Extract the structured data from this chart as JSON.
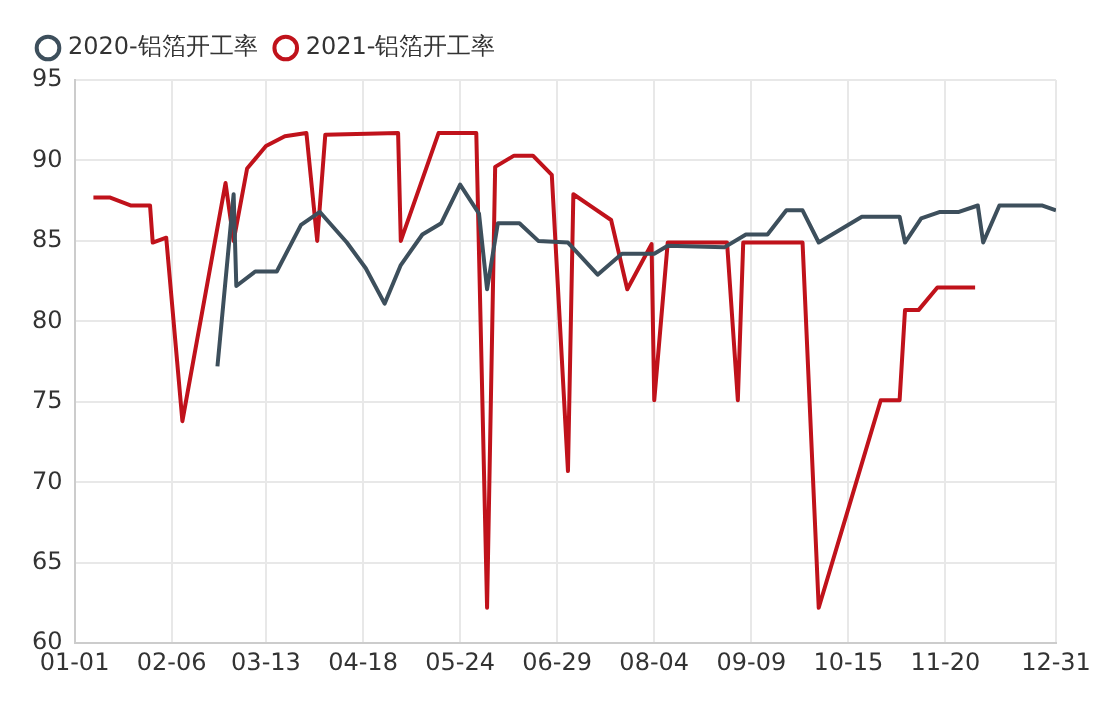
{
  "chart_data": {
    "type": "line",
    "legend": "top left",
    "grid": true,
    "marker": "none",
    "line_style": "solid",
    "xlim": [
      "--01-01",
      "--12-31"
    ],
    "xticks": [
      {
        "value": "--01-01",
        "label": "01-01"
      },
      {
        "value": "--02-06",
        "label": "02-06"
      },
      {
        "value": "--03-13",
        "label": "03-13"
      },
      {
        "value": "--04-18",
        "label": "04-18"
      },
      {
        "value": "--05-24",
        "label": "05-24"
      },
      {
        "value": "--06-29",
        "label": "06-29"
      },
      {
        "value": "--08-04",
        "label": "08-04"
      },
      {
        "value": "--09-09",
        "label": "09-09"
      },
      {
        "value": "--10-15",
        "label": "10-15"
      },
      {
        "value": "--11-20",
        "label": "11-20"
      },
      {
        "value": "--12-31",
        "label": "12-31"
      }
    ],
    "ylim": [
      60,
      95
    ],
    "yticks": [
      60,
      65,
      70,
      75,
      80,
      85,
      90,
      95
    ],
    "series": [
      {
        "name": "2020-铝箔开工率",
        "color": "#3d4f5c",
        "x": [
          "--02-23",
          "--03-01",
          "--03-02",
          "--03-09",
          "--03-17",
          "--03-26",
          "--04-02",
          "--04-12",
          "--04-19",
          "--04-26",
          "--05-02",
          "--05-10",
          "--05-17",
          "--05-24",
          "--05-31",
          "--06-03",
          "--06-07",
          "--06-15",
          "--06-22",
          "--07-03",
          "--07-14",
          "--07-23",
          "--08-04",
          "--08-09",
          "--08-30",
          "--09-07",
          "--09-15",
          "--09-22",
          "--09-28",
          "--10-04",
          "--10-20",
          "--11-03",
          "--11-05",
          "--11-11",
          "--11-18",
          "--11-25",
          "--12-02",
          "--12-04",
          "--12-10",
          "--12-26",
          "--12-31"
        ],
        "values": [
          77.2,
          87.9,
          82.2,
          83.1,
          83.1,
          86.0,
          86.8,
          84.9,
          83.3,
          81.1,
          83.5,
          85.4,
          86.1,
          88.5,
          86.7,
          82.0,
          86.1,
          86.1,
          85.0,
          84.9,
          82.9,
          84.2,
          84.2,
          84.7,
          84.6,
          85.4,
          85.4,
          86.9,
          86.9,
          84.9,
          86.5,
          86.5,
          84.9,
          86.4,
          86.8,
          86.8,
          87.2,
          84.9,
          87.2,
          87.2,
          86.9
        ]
      },
      {
        "name": "2021-铝箔开工率",
        "color": "#c0121b",
        "x": [
          "--01-08",
          "--01-14",
          "--01-22",
          "--01-29",
          "--01-30",
          "--02-04",
          "--02-10",
          "--02-26",
          "--03-01",
          "--03-06",
          "--03-13",
          "--03-20",
          "--03-28",
          "--04-01",
          "--04-04",
          "--05-01",
          "--05-02",
          "--05-16",
          "--05-30",
          "--06-03",
          "--06-06",
          "--06-13",
          "--06-20",
          "--06-27",
          "--07-03",
          "--07-05",
          "--07-12",
          "--07-19",
          "--07-25",
          "--08-03",
          "--08-04",
          "--08-09",
          "--08-31",
          "--09-04",
          "--09-06",
          "--09-28",
          "--10-04",
          "--10-27",
          "--11-03",
          "--11-05",
          "--11-10",
          "--11-17",
          "--12-01"
        ],
        "values": [
          87.7,
          87.7,
          87.2,
          87.2,
          84.9,
          85.2,
          73.8,
          88.6,
          85.0,
          89.5,
          90.9,
          91.5,
          91.7,
          85.0,
          91.6,
          91.7,
          85.0,
          91.7,
          91.7,
          62.2,
          89.6,
          90.3,
          90.3,
          89.1,
          70.7,
          87.9,
          87.1,
          86.3,
          82.0,
          84.8,
          75.1,
          84.9,
          84.9,
          75.1,
          84.9,
          84.9,
          62.2,
          75.1,
          75.1,
          80.7,
          80.7,
          82.1,
          82.1
        ]
      }
    ]
  }
}
